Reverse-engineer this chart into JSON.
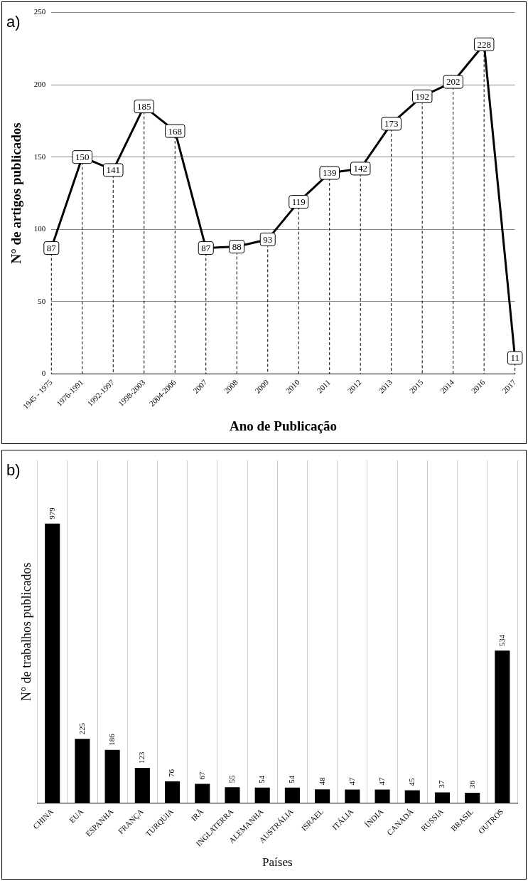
{
  "chart_data": [
    {
      "type": "line",
      "annotations": [
        "a)"
      ],
      "xlabel": "Ano de Publicação",
      "ylabel": "N° de artigos publicados",
      "categories": [
        "1945 - 1975",
        "1976-1991",
        "1992-1997",
        "1998-2003",
        "2004-2006",
        "2007",
        "2008",
        "2009",
        "2010",
        "2011",
        "2012",
        "2013",
        "2015",
        "2014",
        "2016",
        "2017"
      ],
      "series": [
        {
          "color": "#000000",
          "values": [
            87,
            150,
            141,
            185,
            168,
            87,
            88,
            93,
            119,
            139,
            142,
            173,
            192,
            202,
            228,
            11
          ]
        }
      ],
      "ylim": [
        0,
        250
      ],
      "yticks": [
        0,
        50,
        100,
        150,
        200,
        250
      ],
      "grid": true,
      "marker": "square",
      "line_style": "solid",
      "data_labels": true
    },
    {
      "type": "bar",
      "annotations": [
        "b)"
      ],
      "xlabel": "Países",
      "ylabel": "N° de trabalhos publicados",
      "categories": [
        "CHINA",
        "EUA",
        "ESPANHA",
        "FRANÇA",
        "TURQUIA",
        "IRÃ",
        "INGLATERRA",
        "ALEMANHA",
        "AUSTRÁLIA",
        "ISRAEL",
        "ITÁLIA",
        "ÍNDIA",
        "CANADÁ",
        "RUSSIA",
        "BRASIL",
        "OUTROS"
      ],
      "series": [
        {
          "color": "#000000",
          "values": [
            979,
            225,
            186,
            123,
            76,
            67,
            55,
            54,
            54,
            48,
            47,
            47,
            45,
            37,
            36,
            534
          ]
        }
      ],
      "grid": "x",
      "tick_labels": "x",
      "data_labels": true
    }
  ]
}
